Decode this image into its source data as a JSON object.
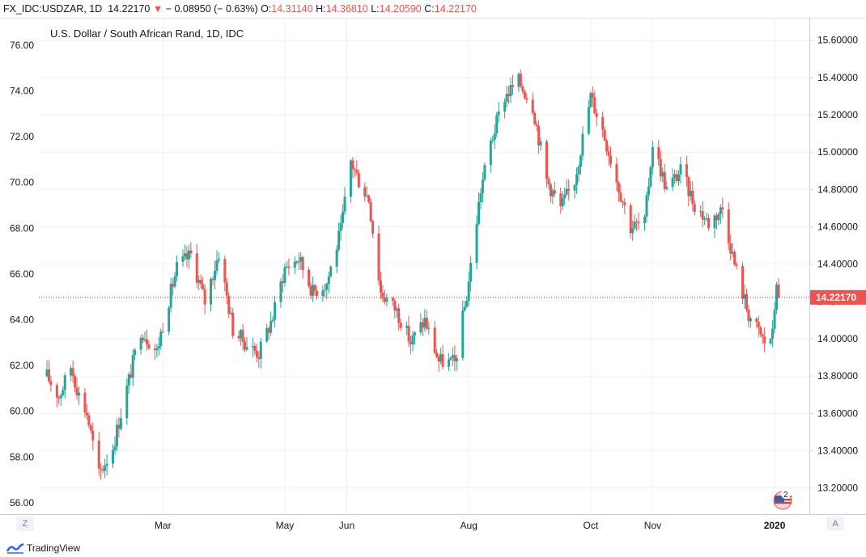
{
  "header": {
    "symbol": "FX_IDC:USDZAR, 1D",
    "last": "14.22170",
    "change": "− 0.08950 (− 0.63%)",
    "open_label": "O:",
    "open": "14.31140",
    "high_label": "H:",
    "high": "14.36810",
    "low_label": "L:",
    "low": "14.20590",
    "close_label": "C:",
    "close": "14.22170"
  },
  "colors": {
    "up": "#26a69a",
    "down": "#ef5350",
    "grid": "#eef0f4",
    "axis_text": "#131722",
    "price_line": "#c62828"
  },
  "axis_buttons": {
    "left": "Z",
    "right": "A"
  },
  "footer": {
    "brand": "TradingView"
  },
  "events_badge": {
    "count": "2"
  },
  "chart_data": {
    "type": "candlestick",
    "title": "U.S. Dollar / South African Rand, 1D, IDC",
    "left_axis": {
      "ylim": [
        55.5,
        77.2
      ],
      "ticks": [
        "76.00",
        "74.00",
        "72.00",
        "70.00",
        "68.00",
        "66.00",
        "64.00",
        "62.00",
        "60.00",
        "58.00",
        "56.00"
      ]
    },
    "right_axis": {
      "ylim": [
        13.06,
        15.72
      ],
      "ticks": [
        "15.60000",
        "15.40000",
        "15.20000",
        "15.00000",
        "14.80000",
        "14.60000",
        "14.40000",
        "14.20000",
        "14.00000",
        "13.80000",
        "13.60000",
        "13.40000",
        "13.20000"
      ]
    },
    "x_axis": {
      "date_range": [
        "2019-01-02",
        "2020-01-03"
      ],
      "ticks": [
        {
          "label": "Mar",
          "date": "2019-03-01"
        },
        {
          "label": "May",
          "date": "2019-05-01"
        },
        {
          "label": "Jun",
          "date": "2019-06-01"
        },
        {
          "label": "Aug",
          "date": "2019-08-01"
        },
        {
          "label": "Oct",
          "date": "2019-10-01"
        },
        {
          "label": "Nov",
          "date": "2019-11-01"
        },
        {
          "label": "2020",
          "date": "2020-01-01"
        }
      ]
    },
    "last_price": {
      "value": 14.2217,
      "label": "14.22170"
    },
    "grid": true,
    "path_anchors": [
      {
        "date": "2019-01-02",
        "price": 13.8
      },
      {
        "date": "2019-01-08",
        "price": 13.69
      },
      {
        "date": "2019-01-14",
        "price": 13.85
      },
      {
        "date": "2019-01-18",
        "price": 13.7
      },
      {
        "date": "2019-01-22",
        "price": 13.6
      },
      {
        "date": "2019-01-28",
        "price": 13.27
      },
      {
        "date": "2019-02-04",
        "price": 13.42
      },
      {
        "date": "2019-02-12",
        "price": 13.78
      },
      {
        "date": "2019-02-18",
        "price": 14.05
      },
      {
        "date": "2019-02-26",
        "price": 13.93
      },
      {
        "date": "2019-03-01",
        "price": 14.08
      },
      {
        "date": "2019-03-08",
        "price": 14.38
      },
      {
        "date": "2019-03-15",
        "price": 14.45
      },
      {
        "date": "2019-03-22",
        "price": 14.2
      },
      {
        "date": "2019-03-29",
        "price": 14.46
      },
      {
        "date": "2019-04-05",
        "price": 14.05
      },
      {
        "date": "2019-04-12",
        "price": 13.97
      },
      {
        "date": "2019-04-18",
        "price": 13.92
      },
      {
        "date": "2019-04-25",
        "price": 14.12
      },
      {
        "date": "2019-05-01",
        "price": 14.38
      },
      {
        "date": "2019-05-08",
        "price": 14.43
      },
      {
        "date": "2019-05-15",
        "price": 14.25
      },
      {
        "date": "2019-05-22",
        "price": 14.3
      },
      {
        "date": "2019-05-29",
        "price": 14.58
      },
      {
        "date": "2019-06-03",
        "price": 14.95
      },
      {
        "date": "2019-06-07",
        "price": 14.85
      },
      {
        "date": "2019-06-12",
        "price": 14.75
      },
      {
        "date": "2019-06-18",
        "price": 14.25
      },
      {
        "date": "2019-06-26",
        "price": 14.15
      },
      {
        "date": "2019-07-03",
        "price": 13.98
      },
      {
        "date": "2019-07-10",
        "price": 14.1
      },
      {
        "date": "2019-07-17",
        "price": 13.88
      },
      {
        "date": "2019-07-25",
        "price": 13.87
      },
      {
        "date": "2019-07-31",
        "price": 14.23
      },
      {
        "date": "2019-08-07",
        "price": 14.8
      },
      {
        "date": "2019-08-12",
        "price": 15.05
      },
      {
        "date": "2019-08-19",
        "price": 15.3
      },
      {
        "date": "2019-08-26",
        "price": 15.38
      },
      {
        "date": "2019-09-02",
        "price": 15.25
      },
      {
        "date": "2019-09-09",
        "price": 14.85
      },
      {
        "date": "2019-09-16",
        "price": 14.7
      },
      {
        "date": "2019-09-23",
        "price": 14.85
      },
      {
        "date": "2019-10-01",
        "price": 15.3
      },
      {
        "date": "2019-10-07",
        "price": 15.12
      },
      {
        "date": "2019-10-14",
        "price": 14.85
      },
      {
        "date": "2019-10-21",
        "price": 14.6
      },
      {
        "date": "2019-10-28",
        "price": 14.62
      },
      {
        "date": "2019-11-01",
        "price": 15.05
      },
      {
        "date": "2019-11-08",
        "price": 14.8
      },
      {
        "date": "2019-11-15",
        "price": 14.9
      },
      {
        "date": "2019-11-22",
        "price": 14.72
      },
      {
        "date": "2019-11-29",
        "price": 14.62
      },
      {
        "date": "2019-12-06",
        "price": 14.7
      },
      {
        "date": "2019-12-12",
        "price": 14.4
      },
      {
        "date": "2019-12-19",
        "price": 14.13
      },
      {
        "date": "2019-12-27",
        "price": 13.98
      },
      {
        "date": "2019-12-31",
        "price": 14.02
      },
      {
        "date": "2020-01-02",
        "price": 14.32
      },
      {
        "date": "2020-01-03",
        "price": 14.22
      }
    ]
  }
}
